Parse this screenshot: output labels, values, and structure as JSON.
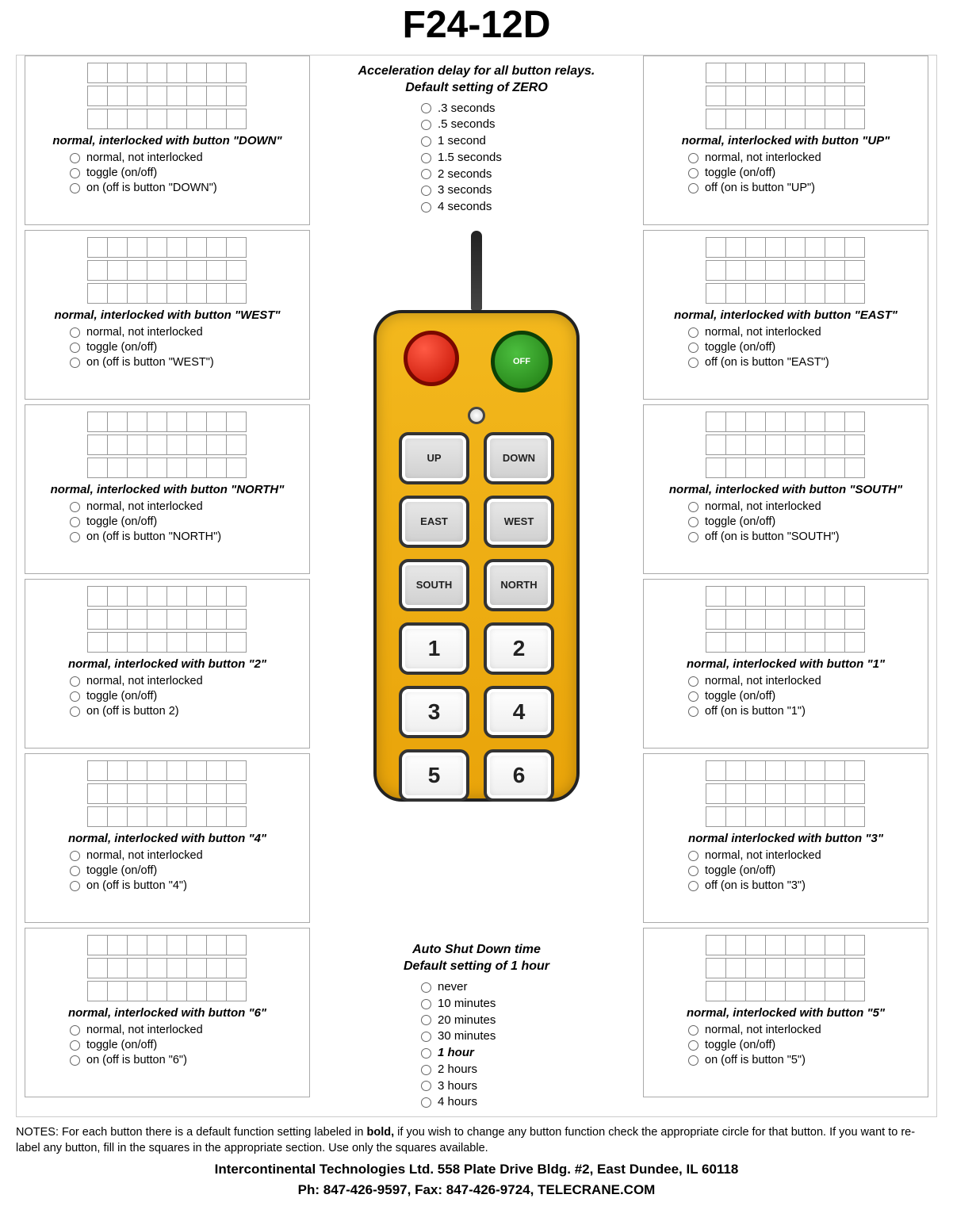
{
  "title": "F24-12D",
  "center_top": {
    "heading_line1": "Acceleration delay for all button relays.",
    "heading_line2": "Default setting of ZERO",
    "options": [
      ".3 seconds",
      ".5 seconds",
      "1  second",
      "1.5 seconds",
      "2 seconds",
      "3 seconds",
      "4 seconds"
    ]
  },
  "remote_buttons": [
    "UP",
    "DOWN",
    "EAST",
    "WEST",
    "SOUTH",
    "NORTH",
    "1",
    "2",
    "3",
    "4",
    "5",
    "6"
  ],
  "onoff_label": "OFF",
  "center_bottom": {
    "heading_line1": "Auto Shut Down time",
    "heading_line2": "Default setting of 1 hour",
    "options": [
      "never",
      "10 minutes",
      "20 minutes",
      "30 minutes",
      "1 hour",
      "2 hours",
      "3 hours",
      "4 hours"
    ],
    "bold_index": 4
  },
  "left_boxes": [
    {
      "heading": "normal, interlocked with button \"DOWN\"",
      "opts": [
        "normal, not interlocked",
        "toggle (on/off)",
        "on (off is button \"DOWN\")"
      ]
    },
    {
      "heading": "normal, interlocked with button \"WEST\"",
      "opts": [
        "normal, not interlocked",
        "toggle (on/off)",
        "on (off is button \"WEST\")"
      ]
    },
    {
      "heading": "normal, interlocked with button \"NORTH\"",
      "opts": [
        "normal, not interlocked",
        "toggle (on/off)",
        "on (off is button \"NORTH\")"
      ]
    },
    {
      "heading": "normal, interlocked with button \"2\"",
      "opts": [
        "normal, not interlocked",
        "toggle (on/off)",
        "on (off is button 2)"
      ]
    },
    {
      "heading": "normal, interlocked with button \"4\"",
      "opts": [
        "normal, not interlocked",
        "toggle (on/off)",
        "on (off is button \"4\")"
      ]
    },
    {
      "heading": "normal, interlocked with button \"6\"",
      "opts": [
        "normal, not interlocked",
        "toggle (on/off)",
        "on (off is button \"6\")"
      ]
    }
  ],
  "right_boxes": [
    {
      "heading": "normal, interlocked with button \"UP\"",
      "opts": [
        "normal, not interlocked",
        "toggle (on/off)",
        "off (on is button \"UP\")"
      ]
    },
    {
      "heading": "normal, interlocked with button \"EAST\"",
      "opts": [
        "normal, not interlocked",
        "toggle (on/off)",
        "off (on is button \"EAST\")"
      ]
    },
    {
      "heading": "normal, interlocked with button \"SOUTH\"",
      "opts": [
        "normal, not interlocked",
        "toggle (on/off)",
        "off (on is button \"SOUTH\")"
      ]
    },
    {
      "heading": "normal, interlocked with button \"1\"",
      "opts": [
        "normal, not interlocked",
        "toggle (on/off)",
        "off (on is button \"1\")"
      ]
    },
    {
      "heading": "normal interlocked with button \"3\"",
      "opts": [
        "normal, not interlocked",
        "toggle (on/off)",
        "off (on is button \"3\")"
      ]
    },
    {
      "heading": "normal, interlocked with button \"5\"",
      "opts": [
        "normal, not interlocked",
        "toggle (on/off)",
        "on (off is button \"5\")"
      ]
    }
  ],
  "notes_html": "NOTES: For each button there is a default function setting labeled in <b>bold,</b> if you wish to change any button function check the appropriate circle for that button. If you want to re-label any button, fill in the squares in the appropriate section. Use only the squares available.",
  "footer_line1": "Intercontinental Technologies Ltd. 558 Plate Drive Bldg. #2, East Dundee, IL  60118",
  "footer_line2": "Ph: 847-426-9597, Fax: 847-426-9724, TELECRANE.COM",
  "grid_rows": 3,
  "grid_cols": 8,
  "colors": {
    "remote_body": "#e9a40a",
    "stop_button": "#c20f00",
    "onoff_button": "#1f7a12",
    "border": "#aaaaaa",
    "text": "#000000"
  }
}
